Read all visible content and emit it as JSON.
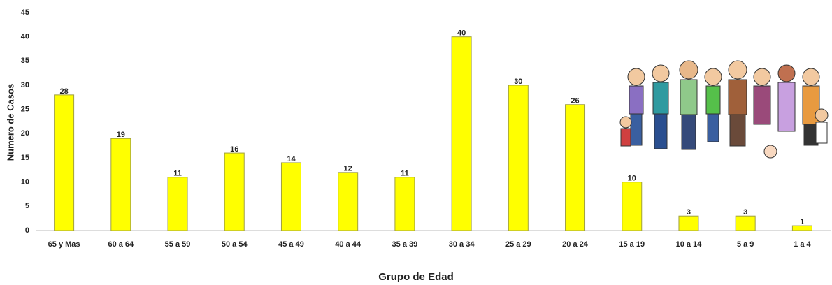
{
  "chart_data": {
    "type": "bar",
    "x_label": "Grupo de Edad",
    "y_label": "Numero de Casos",
    "categories": [
      "65 y Mas",
      "60 a 64",
      "55 a 59",
      "50 a 54",
      "45 a 49",
      "40 a 44",
      "35 a 39",
      "30 a 34",
      "25 a 29",
      "20 a 24",
      "15 a 19",
      "10 a 14",
      "5 a 9",
      "1 a 4"
    ],
    "values": [
      28,
      19,
      11,
      16,
      14,
      12,
      11,
      40,
      30,
      26,
      10,
      3,
      3,
      1
    ],
    "color": "#ffff00",
    "ylim": [
      0,
      45
    ],
    "yticks": [
      0,
      5,
      10,
      15,
      20,
      25,
      30,
      35,
      40,
      45
    ],
    "grid": false
  }
}
